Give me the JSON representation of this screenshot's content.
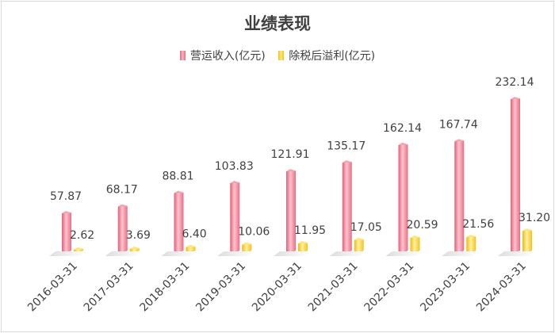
{
  "chart_data": {
    "type": "bar",
    "title": "业绩表现",
    "categories": [
      "2016-03-31",
      "2017-03-31",
      "2018-03-31",
      "2019-03-31",
      "2020-03-31",
      "2021-03-31",
      "2022-03-31",
      "2023-03-31",
      "2024-03-31"
    ],
    "series": [
      {
        "name": "营运收入(亿元)",
        "color": "#f27b8f",
        "values": [
          57.87,
          68.17,
          88.81,
          103.83,
          121.91,
          135.17,
          162.14,
          167.74,
          232.14
        ]
      },
      {
        "name": "除税后溢利(亿元)",
        "color": "#f8cf2a",
        "values": [
          2.62,
          3.69,
          6.4,
          10.06,
          11.95,
          17.05,
          20.59,
          21.56,
          31.2
        ]
      }
    ],
    "labels": [
      [
        "57.87",
        "68.17",
        "88.81",
        "103.83",
        "121.91",
        "135.17",
        "162.14",
        "167.74",
        "232.14"
      ],
      [
        "2.62",
        "3.69",
        "6.40",
        "10.06",
        "11.95",
        "17.05",
        "20.59",
        "21.56",
        "31.20"
      ]
    ],
    "legend_position": "top",
    "grid": false
  }
}
